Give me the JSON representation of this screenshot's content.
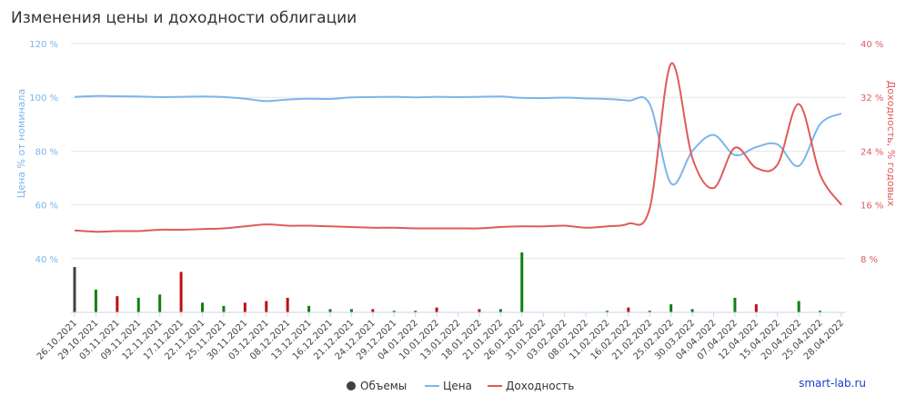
{
  "chart_data": {
    "type": "line",
    "title": "Изменения цены и доходности облигации",
    "ylabel_left": "Цена % от номинала",
    "ylabel_right": "Доходность, % годовых",
    "yticks_left": [
      "40 %",
      "60 %",
      "80 %",
      "100 %",
      "120 %"
    ],
    "yticks_right": [
      "8 %",
      "16 %",
      "24 %",
      "32 %",
      "40 %"
    ],
    "ylim_left": [
      20,
      120
    ],
    "ylim_right": [
      0,
      40
    ],
    "categories": [
      "26.10.2021",
      "29.10.2021",
      "03.11.2021",
      "09.11.2021",
      "12.11.2021",
      "17.11.2021",
      "22.11.2021",
      "25.11.2021",
      "30.11.2021",
      "03.12.2021",
      "08.12.2021",
      "13.12.2021",
      "16.12.2021",
      "21.12.2021",
      "24.12.2021",
      "29.12.2021",
      "04.01.2022",
      "10.01.2022",
      "13.01.2022",
      "18.01.2022",
      "21.01.2022",
      "26.01.2022",
      "31.01.2022",
      "03.02.2022",
      "08.02.2022",
      "11.02.2022",
      "16.02.2022",
      "21.02.2022",
      "25.02.2022",
      "30.03.2022",
      "04.04.2022",
      "07.04.2022",
      "12.04.2022",
      "15.04.2022",
      "20.04.2022",
      "25.04.2022",
      "28.04.2022"
    ],
    "series": [
      {
        "name": "Цена",
        "color": "#7cb5ec",
        "axis": "left",
        "values": [
          100.2,
          100.5,
          100.4,
          100.3,
          100.1,
          100.2,
          100.3,
          100.1,
          99.5,
          98.6,
          99.2,
          99.5,
          99.4,
          100.0,
          100.1,
          100.2,
          100.0,
          100.2,
          100.1,
          100.2,
          100.3,
          99.8,
          99.7,
          99.9,
          99.6,
          99.4,
          98.8,
          97.5,
          68.0,
          80.0,
          86.0,
          78.5,
          81.5,
          82.5,
          74.5,
          90.0,
          94.0
        ]
      },
      {
        "name": "Доходность",
        "color": "#e05a5a",
        "axis": "right",
        "values": [
          12.2,
          12.0,
          12.1,
          12.1,
          12.3,
          12.3,
          12.4,
          12.5,
          12.8,
          13.1,
          12.9,
          12.9,
          12.8,
          12.7,
          12.6,
          12.6,
          12.5,
          12.5,
          12.5,
          12.5,
          12.7,
          12.8,
          12.8,
          12.9,
          12.6,
          12.8,
          13.2,
          15.5,
          37.0,
          23.0,
          18.5,
          24.5,
          21.5,
          22.0,
          31.0,
          20.5,
          16.0
        ]
      }
    ],
    "volumes": {
      "name": "Объемы",
      "values": [
        28,
        14,
        10,
        9,
        11,
        25,
        6,
        4,
        6,
        7,
        9,
        4,
        2,
        2,
        2,
        1,
        1,
        3,
        0,
        2,
        2,
        37,
        0,
        0,
        0,
        1,
        3,
        1,
        5,
        2,
        0,
        9,
        5,
        0,
        7,
        1,
        0
      ],
      "colors": [
        "#404040",
        "#108010",
        "#c01010",
        "#108010",
        "#108010",
        "#c01010",
        "#108010",
        "#108010",
        "#c01010",
        "#c01010",
        "#c01010",
        "#108010",
        "#108010",
        "#108010",
        "#c01010",
        "#108010",
        "#108010",
        "#c01010",
        "#108010",
        "#c01010",
        "#108010",
        "#108010",
        "#108010",
        "#108010",
        "#108010",
        "#108010",
        "#c01010",
        "#c01010",
        "#108010",
        "#108010",
        "#108010",
        "#108010",
        "#c01010",
        "#108010",
        "#108010",
        "#108010",
        "#108010"
      ]
    },
    "legend": {
      "position": "bottom-center",
      "items": [
        {
          "name": "Объемы",
          "color": "#404040",
          "marker": "circle"
        },
        {
          "name": "Цена",
          "color": "#7cb5ec",
          "marker": "line"
        },
        {
          "name": "Доходность",
          "color": "#e05a5a",
          "marker": "line"
        }
      ]
    },
    "grid": true,
    "credit": "smart-lab.ru"
  }
}
